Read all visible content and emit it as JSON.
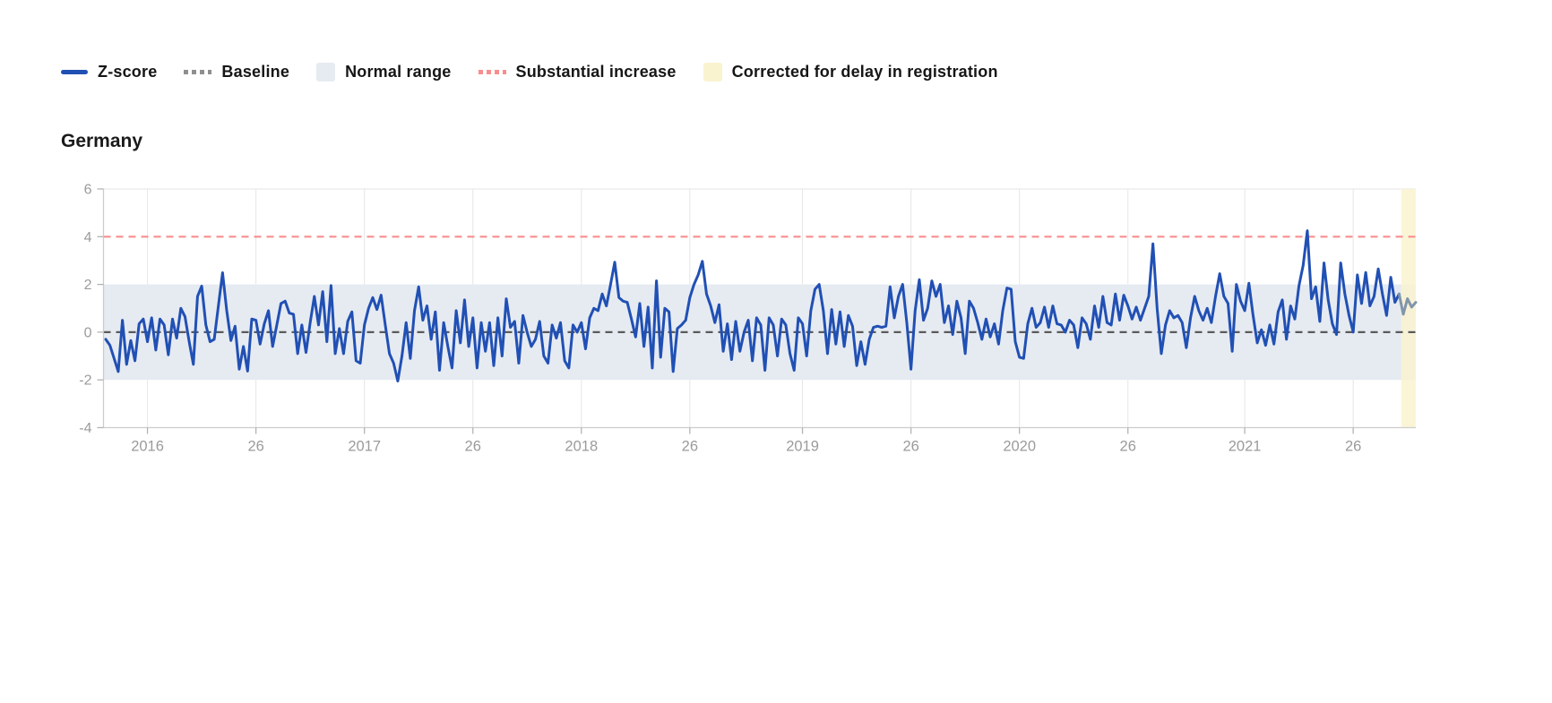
{
  "title": "Germany",
  "legend": {
    "items": [
      {
        "label": "Z-score",
        "swatch": "line"
      },
      {
        "label": "Baseline",
        "swatch": "dotted-line"
      },
      {
        "label": "Normal range",
        "swatch": "box"
      },
      {
        "label": "Substantial increase",
        "swatch": "dotted-line"
      },
      {
        "label": "Corrected for delay in registration",
        "swatch": "box"
      }
    ]
  },
  "colors": {
    "zscore": "#2150b4",
    "zscore_corrected": "#8095aa",
    "baseline_dot": "#8f8f8f",
    "baseline_line": "#5a5a5a",
    "normal_range": "#e6ebf2",
    "substantial": "#f98d8d",
    "corrected": "#faf3cf",
    "grid": "#e6e6e6",
    "axis": "#cccccc",
    "tick": "#b3b3b3",
    "tick_label": "#9b9b9b"
  },
  "chart_data": {
    "type": "line",
    "title": "Germany",
    "xlabel": "",
    "ylabel": "",
    "ylim": [
      -4,
      6
    ],
    "y_ticks": [
      6,
      4,
      2,
      0,
      -2,
      -4
    ],
    "x_ticks": [
      {
        "label": "2016",
        "week": 10
      },
      {
        "label": "26",
        "week": 36
      },
      {
        "label": "2017",
        "week": 62
      },
      {
        "label": "26",
        "week": 88
      },
      {
        "label": "2018",
        "week": 114
      },
      {
        "label": "26",
        "week": 140
      },
      {
        "label": "2019",
        "week": 167
      },
      {
        "label": "26",
        "week": 193
      },
      {
        "label": "2020",
        "week": 219
      },
      {
        "label": "26",
        "week": 245
      },
      {
        "label": "2021",
        "week": 273
      },
      {
        "label": "26",
        "week": 299
      }
    ],
    "frequency": "weekly",
    "x_start": "2015-W42",
    "baseline": 0,
    "substantial_increase_threshold": 4,
    "normal_range": [
      -2,
      2
    ],
    "corrected_last_n": 4,
    "grid": true,
    "legend_position": "top-left",
    "series": [
      {
        "name": "Z-score",
        "values": [
          -0.3,
          -0.55,
          -1.1,
          -1.65,
          0.5,
          -1.35,
          -0.35,
          -1.2,
          0.35,
          0.55,
          -0.4,
          0.6,
          -0.75,
          0.55,
          0.3,
          -0.95,
          0.55,
          -0.25,
          1.0,
          0.65,
          -0.4,
          -1.35,
          1.5,
          1.93,
          0.3,
          -0.4,
          -0.3,
          1.1,
          2.49,
          0.9,
          -0.35,
          0.25,
          -1.55,
          -0.6,
          -1.63,
          0.55,
          0.5,
          -0.5,
          0.35,
          0.9,
          -0.6,
          0.3,
          1.2,
          1.3,
          0.8,
          0.75,
          -0.9,
          0.3,
          -0.85,
          0.4,
          1.5,
          0.3,
          1.7,
          -0.4,
          1.95,
          -0.9,
          0.15,
          -0.9,
          0.45,
          0.85,
          -1.2,
          -1.3,
          0.3,
          1.0,
          1.45,
          0.95,
          1.55,
          0.3,
          -0.9,
          -1.3,
          -2.05,
          -1.0,
          0.4,
          -1.1,
          0.9,
          1.9,
          0.5,
          1.1,
          -0.3,
          0.85,
          -1.6,
          0.4,
          -0.6,
          -1.5,
          0.9,
          -0.45,
          1.35,
          -0.6,
          0.6,
          -1.5,
          0.4,
          -0.8,
          0.4,
          -1.4,
          0.6,
          -1.0,
          1.4,
          0.2,
          0.45,
          -1.3,
          0.7,
          0.0,
          -0.6,
          -0.3,
          0.45,
          -1.0,
          -1.3,
          0.3,
          -0.25,
          0.4,
          -1.2,
          -1.5,
          0.3,
          0.0,
          0.4,
          -0.7,
          0.6,
          1.0,
          0.9,
          1.6,
          1.1,
          2.0,
          2.93,
          1.45,
          1.3,
          1.25,
          0.55,
          -0.2,
          1.2,
          -0.6,
          1.05,
          -1.5,
          2.15,
          -1.05,
          1.0,
          0.85,
          -1.65,
          0.15,
          0.3,
          0.5,
          1.45,
          2.0,
          2.4,
          2.97,
          1.6,
          1.1,
          0.4,
          1.15,
          -0.8,
          0.35,
          -1.15,
          0.45,
          -0.8,
          0.0,
          0.5,
          -1.2,
          0.6,
          0.3,
          -1.6,
          0.6,
          0.3,
          -1.0,
          0.55,
          0.3,
          -0.9,
          -1.6,
          0.6,
          0.35,
          -1.0,
          0.9,
          1.8,
          2.0,
          0.9,
          -0.9,
          0.95,
          -0.5,
          0.85,
          -0.6,
          0.7,
          0.25,
          -1.4,
          -0.4,
          -1.35,
          -0.3,
          0.2,
          0.25,
          0.2,
          0.25,
          1.9,
          0.6,
          1.5,
          2.0,
          0.4,
          -1.55,
          0.9,
          2.2,
          0.5,
          1.0,
          2.15,
          1.5,
          2.0,
          0.4,
          1.1,
          -0.1,
          1.3,
          0.6,
          -0.9,
          1.3,
          1.0,
          0.4,
          -0.3,
          0.55,
          -0.2,
          0.35,
          -0.5,
          0.9,
          1.85,
          1.8,
          -0.4,
          -1.05,
          -1.1,
          0.35,
          1.0,
          0.2,
          0.4,
          1.05,
          0.2,
          1.1,
          0.35,
          0.3,
          0.0,
          0.5,
          0.3,
          -0.65,
          0.6,
          0.35,
          -0.3,
          1.1,
          0.2,
          1.5,
          0.4,
          0.3,
          1.6,
          0.5,
          1.55,
          1.1,
          0.55,
          1.05,
          0.5,
          1.0,
          1.5,
          3.7,
          1.0,
          -0.9,
          0.3,
          0.9,
          0.6,
          0.7,
          0.4,
          -0.65,
          0.6,
          1.5,
          0.9,
          0.5,
          1.0,
          0.4,
          1.5,
          2.45,
          1.5,
          1.2,
          -0.8,
          2.0,
          1.3,
          0.9,
          2.05,
          0.7,
          -0.45,
          0.1,
          -0.55,
          0.3,
          -0.5,
          0.85,
          1.35,
          -0.3,
          1.1,
          0.55,
          1.95,
          2.8,
          4.25,
          1.4,
          1.9,
          0.45,
          2.9,
          1.35,
          0.35,
          -0.1,
          2.9,
          1.6,
          0.7,
          0.0,
          2.4,
          1.2,
          2.5,
          1.1,
          1.5,
          2.65,
          1.6,
          0.7,
          2.3,
          1.25,
          1.6,
          0.75,
          1.4,
          1.05,
          1.25
        ]
      }
    ]
  }
}
